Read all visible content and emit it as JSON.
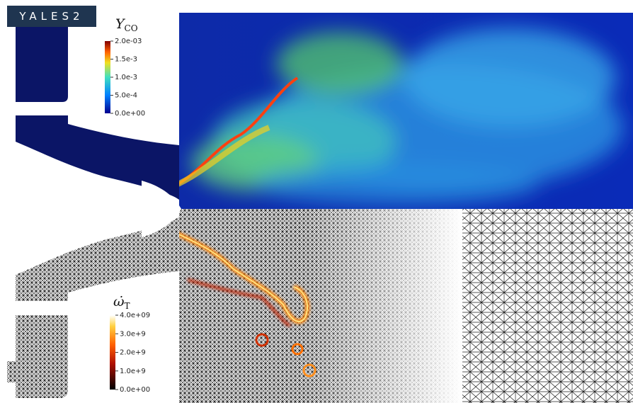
{
  "logo": "YALES2",
  "colorbars": [
    {
      "symbol": "Y",
      "subscript": "CO",
      "ticks": [
        "2.0e-03",
        "1.5e-3",
        "1.0e-3",
        "5.0e-4",
        "0.0e+00"
      ]
    },
    {
      "symbol": "ω̇",
      "subscript": "T",
      "ticks": [
        "4.0e+09",
        "3.0e+9",
        "2.0e+9",
        "1.0e+9",
        "0.0e+00"
      ]
    }
  ]
}
